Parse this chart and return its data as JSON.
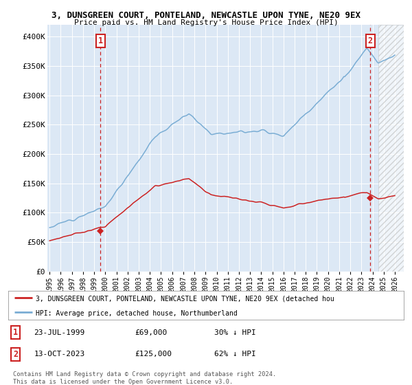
{
  "title": "3, DUNSGREEN COURT, PONTELAND, NEWCASTLE UPON TYNE, NE20 9EX",
  "subtitle": "Price paid vs. HM Land Registry's House Price Index (HPI)",
  "ylim": [
    0,
    420000
  ],
  "yticks": [
    0,
    50000,
    100000,
    150000,
    200000,
    250000,
    300000,
    350000,
    400000
  ],
  "ytick_labels": [
    "£0",
    "£50K",
    "£100K",
    "£150K",
    "£200K",
    "£250K",
    "£300K",
    "£350K",
    "£400K"
  ],
  "background_color": "#ffffff",
  "plot_bg_color": "#dce8f5",
  "grid_color": "#ffffff",
  "hpi_color": "#7aadd4",
  "price_color": "#cc2222",
  "legend_hpi_label": "HPI: Average price, detached house, Northumberland",
  "legend_price_label": "3, DUNSGREEN COURT, PONTELAND, NEWCASTLE UPON TYNE, NE20 9EX (detached hou",
  "annotation1_date": "23-JUL-1999",
  "annotation1_price": "£69,000",
  "annotation1_hpi": "30% ↓ HPI",
  "annotation2_date": "13-OCT-2023",
  "annotation2_price": "£125,000",
  "annotation2_hpi": "62% ↓ HPI",
  "footer": "Contains HM Land Registry data © Crown copyright and database right 2024.\nThis data is licensed under the Open Government Licence v3.0.",
  "sale1_x": 1999.56,
  "sale1_y": 69000,
  "sale2_x": 2023.79,
  "sale2_y": 125000,
  "hatch_start_x": 2024.5,
  "xlim_left": 1994.8,
  "xlim_right": 2026.8
}
